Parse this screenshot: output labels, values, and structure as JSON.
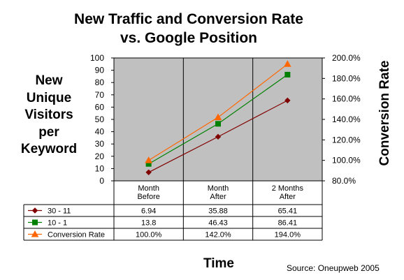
{
  "chart_data": {
    "type": "line",
    "title_line1": "New Traffic and Conversion Rate",
    "title_line2": "vs. Google Position",
    "ylabel_left": [
      "New",
      "Unique",
      "Visitors",
      "per",
      "Keyword"
    ],
    "ylabel_right": "Conversion Rate",
    "xlabel": "Time",
    "source": "Source: Oneupweb  2005",
    "categories": [
      [
        "Month",
        "Before"
      ],
      [
        "Month",
        "After"
      ],
      [
        "2 Months",
        "After"
      ]
    ],
    "left_axis": {
      "min": 0,
      "max": 100,
      "ticks": [
        "0",
        "10",
        "20",
        "30",
        "40",
        "50",
        "60",
        "70",
        "80",
        "90",
        "100"
      ]
    },
    "right_axis": {
      "min": 80,
      "max": 200,
      "ticks": [
        "80.0%",
        "100.0%",
        "120.0%",
        "140.0%",
        "160.0%",
        "180.0%",
        "200.0%"
      ]
    },
    "series": [
      {
        "name": "30 - 11",
        "values": [
          6.94,
          35.88,
          65.41
        ],
        "labels": [
          "6.94",
          "35.88",
          "65.41"
        ],
        "axis": "left",
        "color": "#800000",
        "marker": "diamond"
      },
      {
        "name": "10 - 1",
        "values": [
          13.8,
          46.43,
          86.41
        ],
        "labels": [
          "13.8",
          "46.43",
          "86.41"
        ],
        "axis": "left",
        "color": "#008000",
        "marker": "square"
      },
      {
        "name": "Conversion Rate",
        "values": [
          100,
          142,
          194
        ],
        "labels": [
          "100.0%",
          "142.0%",
          "194.0%"
        ],
        "axis": "right",
        "color": "#ff6600",
        "marker": "triangle"
      }
    ],
    "plot_background": "#c0c0c0",
    "grid": "vertical"
  }
}
